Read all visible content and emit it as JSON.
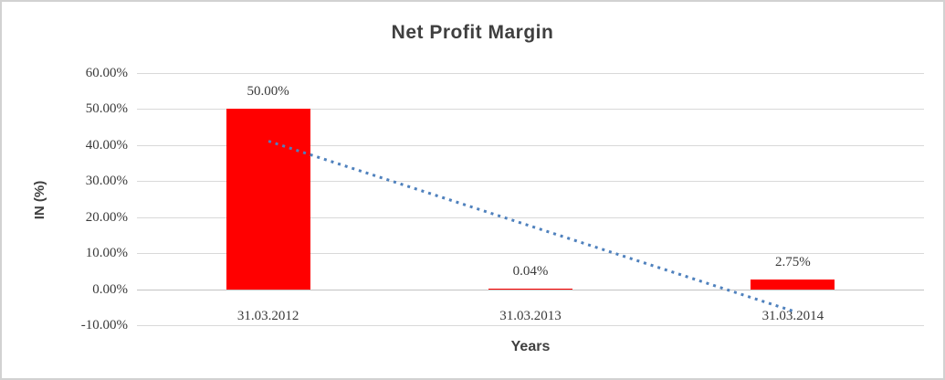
{
  "window": {
    "background": "#ffffff",
    "border_color": "#d2d2d2"
  },
  "chart_data": {
    "type": "bar",
    "title": "Net Profit Margin",
    "xlabel": "Years",
    "ylabel": "IN (%)",
    "categories": [
      "31.03.2012",
      "31.03.2013",
      "31.03.2014"
    ],
    "values": [
      50.0,
      0.04,
      2.75
    ],
    "data_labels": [
      "50.00%",
      "0.04%",
      "2.75%"
    ],
    "bar_color": "#ff0000",
    "ylim": [
      -10,
      60
    ],
    "ytick_values": [
      60,
      50,
      40,
      30,
      20,
      10,
      0,
      -10
    ],
    "ytick_labels": [
      "60.00%",
      "50.00%",
      "40.00%",
      "30.00%",
      "20.00%",
      "10.00%",
      "0.00%",
      "-10.00%"
    ],
    "grid": true,
    "gridline_color": "#d9d9d9",
    "axis_line_color": "#c2c2c2",
    "legend_position": "none",
    "trendline": {
      "style": "dotted",
      "color": "#4f81bd",
      "start_value": 41.2,
      "end_value": -6.0
    },
    "text_color": "#3f3f3f"
  }
}
